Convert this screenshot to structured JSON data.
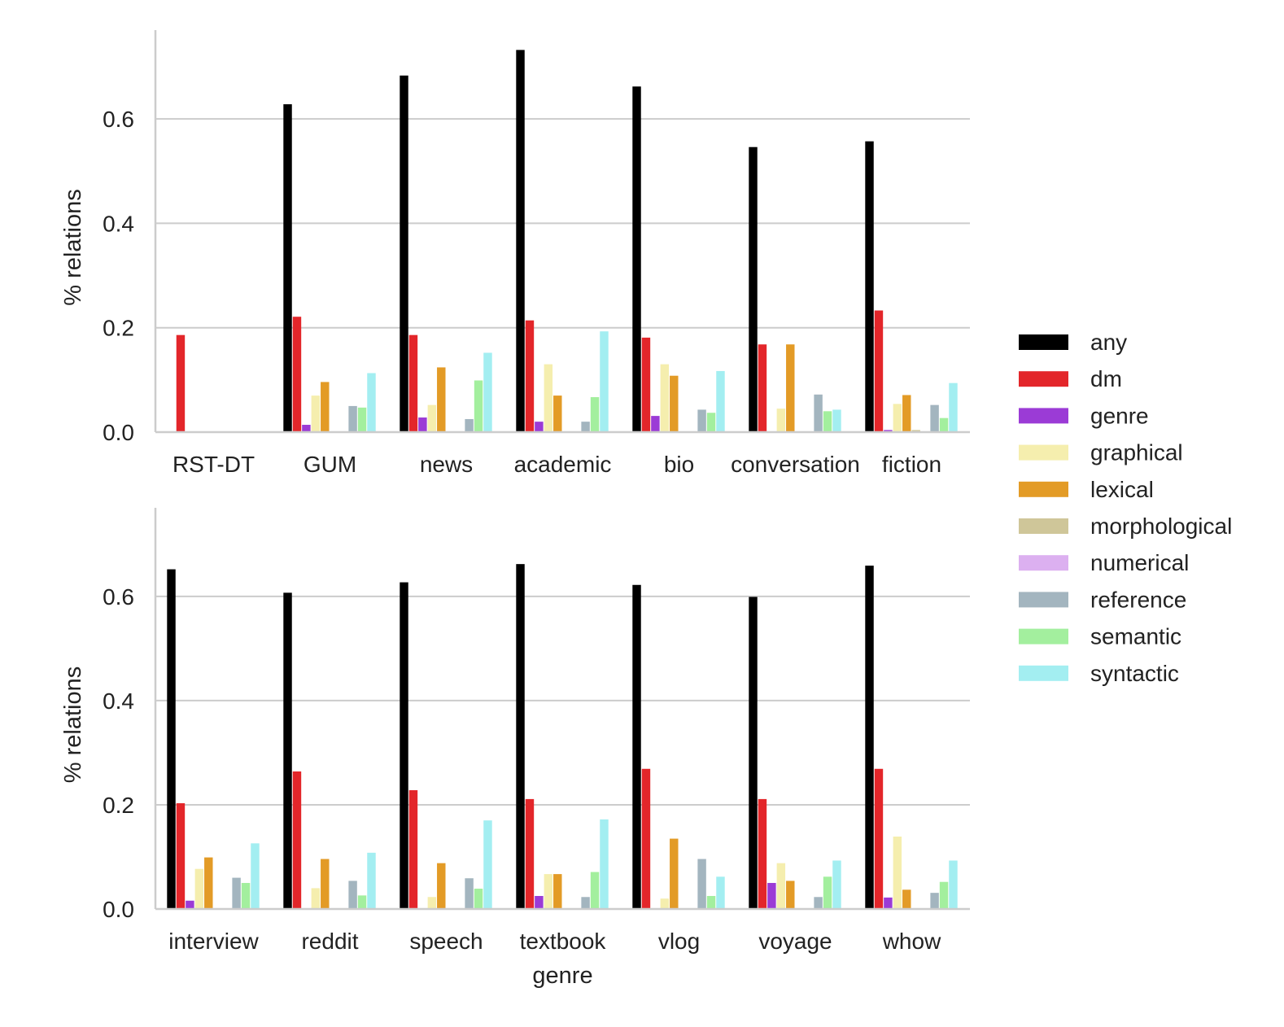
{
  "series_names": [
    "any",
    "dm",
    "genre",
    "graphical",
    "lexical",
    "morphological",
    "numerical",
    "reference",
    "semantic",
    "syntactic"
  ],
  "colors": {
    "any": "#000000",
    "dm": "#e3262a",
    "genre": "#9b3bd6",
    "graphical": "#f5eeae",
    "lexical": "#e39b26",
    "morphological": "#cfc699",
    "numerical": "#dcb0f0",
    "reference": "#a3b5bf",
    "semantic": "#a3ef9e",
    "syntactic": "#a3eef1",
    "grid": "#cccccc",
    "axis": "#cccccc"
  },
  "legend": {
    "position": "center-right",
    "entries": [
      "any",
      "dm",
      "genre",
      "graphical",
      "lexical",
      "morphological",
      "numerical",
      "reference",
      "semantic",
      "syntactic"
    ]
  },
  "chart_data": [
    {
      "type": "bar",
      "id": "top",
      "title": "",
      "xlabel": "",
      "ylabel": "% relations",
      "ylim": [
        0,
        0.77
      ],
      "yticks": [
        0.0,
        0.2,
        0.4,
        0.6
      ],
      "ytick_labels": [
        "0.0",
        "0.2",
        "0.4",
        "0.6"
      ],
      "grid": true,
      "categories": [
        "RST-DT",
        "GUM",
        "news",
        "academic",
        "bio",
        "conversation",
        "fiction"
      ],
      "series": [
        {
          "name": "any",
          "values": [
            0.0,
            0.628,
            0.683,
            0.732,
            0.662,
            0.546,
            0.557
          ]
        },
        {
          "name": "dm",
          "values": [
            0.186,
            0.221,
            0.186,
            0.214,
            0.181,
            0.168,
            0.233
          ]
        },
        {
          "name": "genre",
          "values": [
            0.0,
            0.014,
            0.028,
            0.02,
            0.031,
            0.0,
            0.004
          ]
        },
        {
          "name": "graphical",
          "values": [
            0.0,
            0.07,
            0.052,
            0.13,
            0.13,
            0.045,
            0.054
          ]
        },
        {
          "name": "lexical",
          "values": [
            0.0,
            0.096,
            0.124,
            0.07,
            0.108,
            0.168,
            0.071
          ]
        },
        {
          "name": "morphological",
          "values": [
            0.0,
            0.0,
            0.0,
            0.0,
            0.0,
            0.0,
            0.004
          ]
        },
        {
          "name": "numerical",
          "values": [
            0.0,
            0.0,
            0.0,
            0.0,
            0.0,
            0.0,
            0.0
          ]
        },
        {
          "name": "reference",
          "values": [
            0.0,
            0.05,
            0.025,
            0.02,
            0.043,
            0.072,
            0.052
          ]
        },
        {
          "name": "semantic",
          "values": [
            0.0,
            0.047,
            0.099,
            0.067,
            0.037,
            0.04,
            0.027
          ]
        },
        {
          "name": "syntactic",
          "values": [
            0.0,
            0.113,
            0.152,
            0.193,
            0.117,
            0.043,
            0.094
          ]
        }
      ]
    },
    {
      "type": "bar",
      "id": "bottom",
      "title": "",
      "xlabel": "genre",
      "ylabel": "% relations",
      "ylim": [
        0,
        0.77
      ],
      "yticks": [
        0.0,
        0.2,
        0.4,
        0.6
      ],
      "ytick_labels": [
        "0.0",
        "0.2",
        "0.4",
        "0.6"
      ],
      "grid": true,
      "categories": [
        "interview",
        "reddit",
        "speech",
        "textbook",
        "vlog",
        "voyage",
        "whow"
      ],
      "series": [
        {
          "name": "any",
          "values": [
            0.652,
            0.607,
            0.627,
            0.662,
            0.622,
            0.599,
            0.659
          ]
        },
        {
          "name": "dm",
          "values": [
            0.203,
            0.264,
            0.228,
            0.211,
            0.269,
            0.211,
            0.269
          ]
        },
        {
          "name": "genre",
          "values": [
            0.016,
            0.0,
            0.0,
            0.025,
            0.0,
            0.05,
            0.022
          ]
        },
        {
          "name": "graphical",
          "values": [
            0.077,
            0.04,
            0.023,
            0.067,
            0.02,
            0.088,
            0.139
          ]
        },
        {
          "name": "lexical",
          "values": [
            0.099,
            0.096,
            0.088,
            0.067,
            0.135,
            0.054,
            0.037
          ]
        },
        {
          "name": "morphological",
          "values": [
            0.0,
            0.0,
            0.0,
            0.0,
            0.0,
            0.0,
            0.0
          ]
        },
        {
          "name": "numerical",
          "values": [
            0.0,
            0.0,
            0.0,
            0.0,
            0.0,
            0.0,
            0.0
          ]
        },
        {
          "name": "reference",
          "values": [
            0.06,
            0.054,
            0.059,
            0.023,
            0.096,
            0.023,
            0.031
          ]
        },
        {
          "name": "semantic",
          "values": [
            0.05,
            0.026,
            0.039,
            0.071,
            0.025,
            0.062,
            0.052
          ]
        },
        {
          "name": "syntactic",
          "values": [
            0.126,
            0.108,
            0.17,
            0.172,
            0.062,
            0.093,
            0.093
          ]
        }
      ]
    }
  ]
}
